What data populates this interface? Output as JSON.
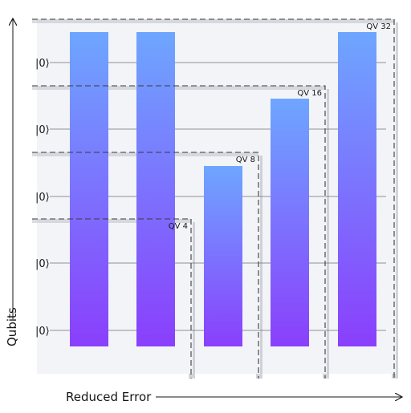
{
  "axes": {
    "y_label": "Qubits",
    "x_label": "Reduced Error"
  },
  "qubit_row_label": "|0⟩",
  "qubit_rows": 5,
  "volume_boxes": [
    {
      "label": "QV 32",
      "qubits": 5
    },
    {
      "label": "QV 16",
      "qubits": 4
    },
    {
      "label": "QV 8",
      "qubits": 3
    },
    {
      "label": "QV 4",
      "qubits": 2
    }
  ],
  "colors": {
    "panel": "#f2f4f8",
    "shadow": "#c1c7cd",
    "wire": "#6f6f6f",
    "bar_top": "#6ea6ff",
    "bar_bottom": "#8a3ffc",
    "dash": "#393939",
    "text": "#161616"
  }
}
